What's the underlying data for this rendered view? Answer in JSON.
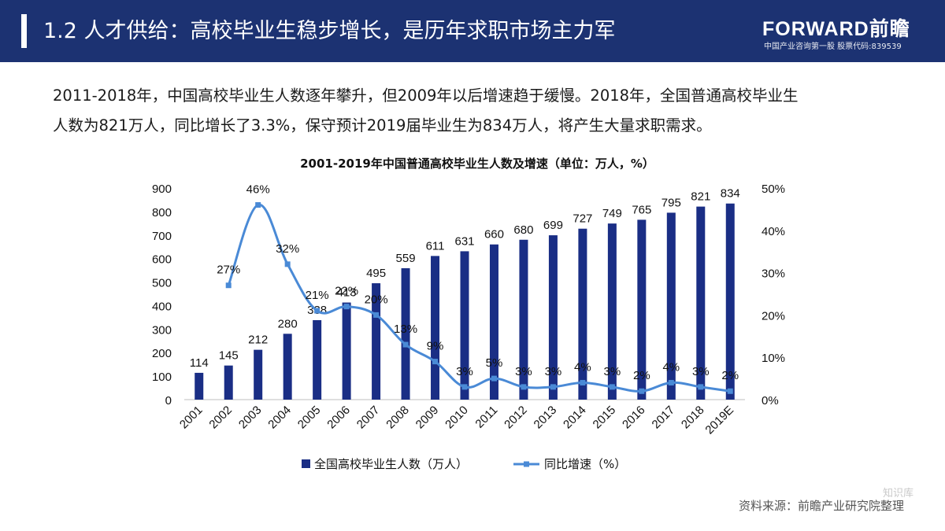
{
  "header": {
    "title": "1.2 人才供给：高校毕业生稳步增长，是历年求职市场主力军",
    "logo_brand": "FORWARD前瞻",
    "logo_tagline": "中国产业咨询第一股  股票代码:839539"
  },
  "body_text": [
    "2011-2018年，中国高校毕业生人数逐年攀升，但2009年以后增速趋于缓慢。2018年，全国普通高校毕业生",
    "人数为821万人，同比增长了3.3%，保守预计2019届毕业生为834万人，将产生大量求职需求。"
  ],
  "footer": {
    "source": "资料来源：前瞻产业研究院整理",
    "watermark": "知识库"
  },
  "colors": {
    "header_bg": "#1c3272",
    "bar": "#1a2e85",
    "line": "#4a8ad6"
  },
  "chart_data": {
    "type": "bar+line",
    "title": "2001-2019年中国普通高校毕业生人数及增速（单位：万人，%）",
    "categories": [
      "2001",
      "2002",
      "2003",
      "2004",
      "2005",
      "2006",
      "2007",
      "2008",
      "2009",
      "2010",
      "2011",
      "2012",
      "2013",
      "2014",
      "2015",
      "2016",
      "2017",
      "2018",
      "2019E"
    ],
    "series": [
      {
        "name": "全国高校毕业生人数（万人）",
        "type": "bar",
        "axis": "left",
        "values": [
          114,
          145,
          212,
          280,
          338,
          413,
          495,
          559,
          611,
          631,
          660,
          680,
          699,
          727,
          749,
          765,
          795,
          821,
          834
        ],
        "labels": [
          "114",
          "145",
          "212",
          "280",
          "338",
          "413",
          "495",
          "559",
          "611",
          "631",
          "660",
          "680",
          "699",
          "727",
          "749",
          "765",
          "795",
          "821",
          "834"
        ]
      },
      {
        "name": "同比增速（%）",
        "type": "line",
        "axis": "right",
        "values": [
          null,
          27,
          46,
          32,
          21,
          22,
          20,
          13,
          9,
          3,
          5,
          3,
          3,
          4,
          3,
          2,
          4,
          3,
          2
        ],
        "labels": [
          "",
          "27%",
          "46%",
          "32%",
          "21%",
          "22%",
          "20%",
          "13%",
          "9%",
          "3%",
          "5%",
          "3%",
          "3%",
          "4%",
          "3%",
          "2%",
          "4%",
          "3%",
          "2%"
        ]
      }
    ],
    "y_left": {
      "min": 0,
      "max": 900,
      "ticks": [
        "0",
        "100",
        "200",
        "300",
        "400",
        "500",
        "600",
        "700",
        "800",
        "900"
      ]
    },
    "y_right": {
      "min": 0,
      "max": 50,
      "ticks": [
        "0%",
        "10%",
        "20%",
        "30%",
        "40%",
        "50%"
      ]
    },
    "legend": [
      "全国高校毕业生人数（万人）",
      "同比增速（%）"
    ],
    "legend_position": "bottom",
    "grid": false
  }
}
